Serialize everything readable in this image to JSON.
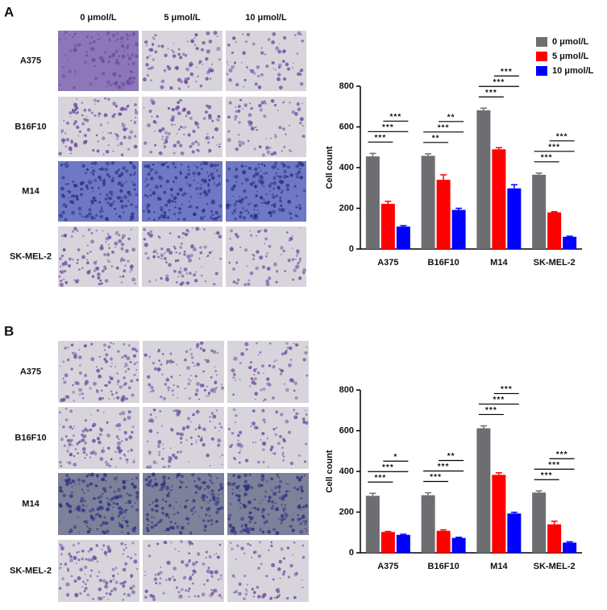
{
  "panels": [
    {
      "label": "A",
      "columns": [
        "0 μmol/L",
        "5 μmol/L",
        "10 μmol/L"
      ],
      "rows": [
        "A375",
        "B16F10",
        "M14",
        "SK-MEL-2"
      ]
    },
    {
      "label": "B",
      "rows": [
        "A375",
        "B16F10",
        "M14",
        "SK-MEL-2"
      ]
    }
  ],
  "chart_data": [
    {
      "type": "bar",
      "y_label": "Cell count",
      "legend": true,
      "legend_position": "top-right",
      "categories": [
        "A375",
        "B16F10",
        "M14",
        "SK-MEL-2"
      ],
      "ylim": [
        0,
        800
      ],
      "yticks": [
        0,
        200,
        400,
        600,
        800
      ],
      "series": [
        {
          "name": "0 μmol/L",
          "color": "#6d6e71",
          "values": [
            455,
            458,
            682,
            365
          ],
          "errors": [
            15,
            10,
            10,
            8
          ]
        },
        {
          "name": "5 μmol/L",
          "color": "#ff0000",
          "values": [
            222,
            340,
            490,
            180
          ],
          "errors": [
            12,
            25,
            8,
            3
          ]
        },
        {
          "name": "10 μmol/L",
          "color": "#0000ff",
          "values": [
            110,
            192,
            298,
            60
          ],
          "errors": [
            5,
            8,
            18,
            3
          ]
        }
      ],
      "annotations": [
        [
          "***",
          "***",
          "***"
        ],
        [
          "**",
          "***",
          "**"
        ],
        [
          "***",
          "***",
          "***"
        ],
        [
          "***",
          "***",
          "***"
        ]
      ]
    },
    {
      "type": "bar",
      "y_label": "Cell count",
      "legend": false,
      "categories": [
        "A375",
        "B16F10",
        "M14",
        "SK-MEL-2"
      ],
      "ylim": [
        0,
        800
      ],
      "yticks": [
        0,
        200,
        400,
        600,
        800
      ],
      "series": [
        {
          "color": "#6d6e71",
          "values": [
            280,
            283,
            612,
            296
          ],
          "errors": [
            12,
            12,
            12,
            8
          ]
        },
        {
          "color": "#ff0000",
          "values": [
            102,
            108,
            383,
            140
          ],
          "errors": [
            3,
            5,
            10,
            15
          ]
        },
        {
          "color": "#0000ff",
          "values": [
            88,
            73,
            193,
            50
          ],
          "errors": [
            3,
            3,
            6,
            4
          ]
        }
      ],
      "annotations": [
        [
          "***",
          "***",
          "*"
        ],
        [
          "***",
          "***",
          "**"
        ],
        [
          "***",
          "***",
          "***"
        ],
        [
          "***",
          "***",
          "***"
        ]
      ]
    }
  ]
}
